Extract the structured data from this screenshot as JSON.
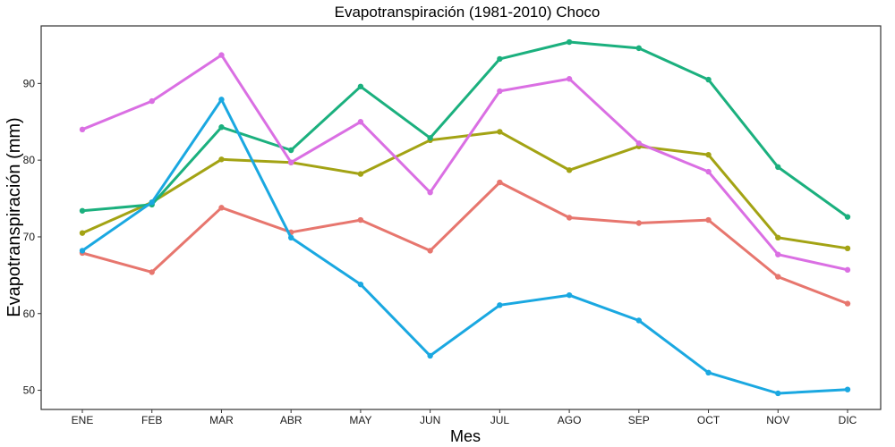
{
  "chart_data": {
    "type": "line",
    "title": "Evapotranspiración (1981-2010)  Choco",
    "xlabel": "Mes",
    "ylabel": "Evapotranspiración (mm)",
    "categories": [
      "ENE",
      "FEB",
      "MAR",
      "ABR",
      "MAY",
      "JUN",
      "JUL",
      "AGO",
      "SEP",
      "OCT",
      "NOV",
      "DIC"
    ],
    "y_ticks": [
      50,
      60,
      70,
      80,
      90
    ],
    "ylim": [
      47.5,
      97.5
    ],
    "grid": false,
    "legend": "none",
    "series": [
      {
        "color": "#E7766E",
        "values": [
          67.9,
          65.4,
          73.8,
          70.6,
          72.2,
          68.2,
          77.1,
          72.5,
          71.8,
          72.2,
          64.8,
          61.3
        ]
      },
      {
        "color": "#A3A314",
        "values": [
          70.5,
          74.5,
          80.1,
          79.7,
          78.2,
          82.6,
          83.7,
          78.7,
          81.8,
          80.7,
          69.9,
          68.5
        ]
      },
      {
        "color": "#1BB07E",
        "values": [
          73.4,
          74.2,
          84.3,
          81.3,
          89.6,
          82.9,
          93.2,
          95.4,
          94.6,
          90.5,
          79.1,
          72.6
        ]
      },
      {
        "color": "#1AA8E1",
        "values": [
          68.2,
          74.5,
          87.9,
          69.9,
          63.8,
          54.5,
          61.1,
          62.4,
          59.1,
          52.3,
          49.6,
          50.1
        ]
      },
      {
        "color": "#DA6FE3",
        "values": [
          84.0,
          87.7,
          93.7,
          79.7,
          85.0,
          75.8,
          89.0,
          90.6,
          82.2,
          78.5,
          67.7,
          65.7
        ]
      }
    ]
  }
}
